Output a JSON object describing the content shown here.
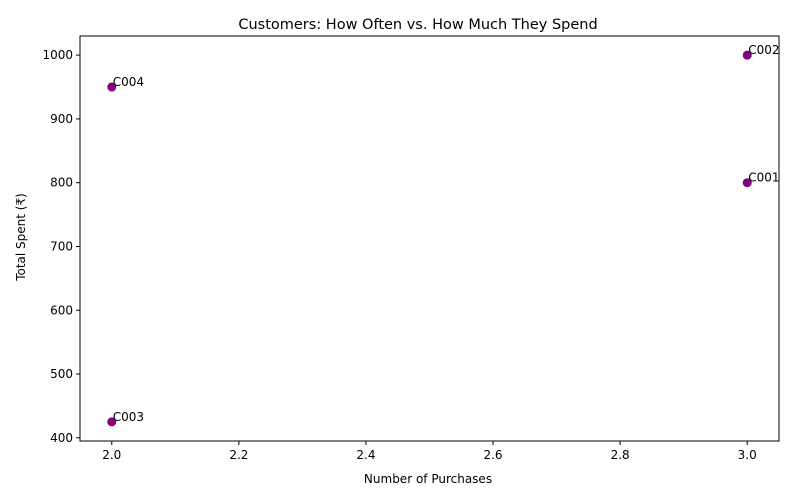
{
  "chart_data": {
    "type": "scatter",
    "title": "Customers: How Often vs. How Much They Spend",
    "xlabel": "Number of Purchases",
    "ylabel": "Total Spent (₹)",
    "xlim": [
      1.95,
      3.05
    ],
    "ylim": [
      395,
      1030
    ],
    "x_ticks": [
      2.0,
      2.2,
      2.4,
      2.6,
      2.8,
      3.0
    ],
    "x_tick_labels": [
      "2.0",
      "2.2",
      "2.4",
      "2.6",
      "2.8",
      "3.0"
    ],
    "y_ticks": [
      400,
      500,
      600,
      700,
      800,
      900,
      1000
    ],
    "y_tick_labels": [
      "400",
      "500",
      "600",
      "700",
      "800",
      "900",
      "1000"
    ],
    "grid": false,
    "marker_color": "#800080",
    "points": [
      {
        "label": "C001",
        "x": 3,
        "y": 800
      },
      {
        "label": "C002",
        "x": 3,
        "y": 1000
      },
      {
        "label": "C003",
        "x": 2,
        "y": 425
      },
      {
        "label": "C004",
        "x": 2,
        "y": 950
      }
    ]
  }
}
